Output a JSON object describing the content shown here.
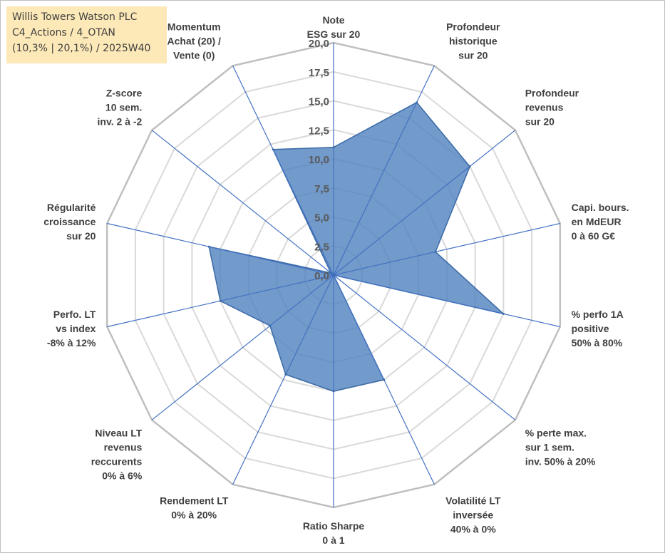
{
  "info_box": {
    "lines": [
      "Willis Towers Watson PLC",
      "C4_Actions / 4_OTAN",
      "(10,3% | 20,1%) / 2025W40"
    ]
  },
  "chart_data": {
    "type": "radar",
    "title": "",
    "range": [
      0,
      20
    ],
    "tick_labels": [
      "0,0",
      "2,5",
      "5,0",
      "7,5",
      "10,0",
      "12,5",
      "15,0",
      "17,5",
      "20,0"
    ],
    "axes": [
      {
        "lines": [
          "Note",
          "ESG sur 20"
        ]
      },
      {
        "lines": [
          "Profondeur",
          "historique",
          "sur 20"
        ]
      },
      {
        "lines": [
          "Profondeur",
          "revenus",
          "sur 20"
        ]
      },
      {
        "lines": [
          "Capi. bours.",
          "en MdEUR",
          "0 à 60 G€"
        ]
      },
      {
        "lines": [
          "% perfo 1A",
          "positive",
          "50% à 80%"
        ]
      },
      {
        "lines": [
          "% perte max.",
          "sur 1 sem.",
          "inv. 50% à 20%"
        ]
      },
      {
        "lines": [
          "Volatilité LT",
          "inversée",
          "40% à 0%"
        ]
      },
      {
        "lines": [
          "Ratio Sharpe",
          "0 à 1"
        ]
      },
      {
        "lines": [
          "Rendement LT",
          "0% à 20%"
        ]
      },
      {
        "lines": [
          "Niveau LT",
          "revenus",
          "reccurents",
          "0% à 6%"
        ]
      },
      {
        "lines": [
          "Perfo. LT",
          "vs index",
          "-8% à 12%"
        ]
      },
      {
        "lines": [
          "Régularité",
          "croissance",
          "sur 20"
        ]
      },
      {
        "lines": [
          "Z-score",
          "10 sem.",
          "inv. 2 à -2"
        ]
      },
      {
        "lines": [
          "Momentum",
          "Achat (20) /",
          "Vente (0)"
        ]
      }
    ],
    "values": [
      11.0,
      16.5,
      15.0,
      9.0,
      15.0,
      0.0,
      10.0,
      10.0,
      9.5,
      7.0,
      10.0,
      11.0,
      0.3,
      12.0
    ],
    "colors": {
      "fill": "#4f81bd",
      "fill_opacity": 0.8,
      "spoke": "#4472c4",
      "grid": "#d9d9d9",
      "outer_ring": "#bfbfbf"
    }
  }
}
